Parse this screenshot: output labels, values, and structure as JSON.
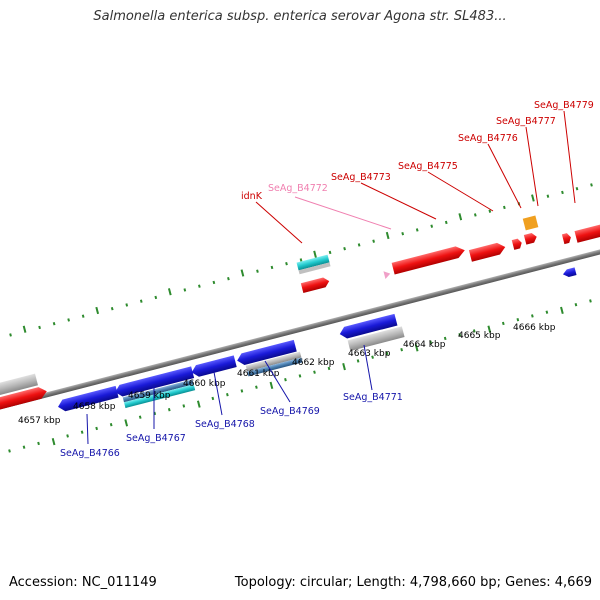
{
  "title": "Salmonella enterica subsp. enterica serovar Agona str. SL483...",
  "footer": {
    "accession": "Accession: NC_011149",
    "summary": "Topology: circular; Length: 4,798,660 bp; Genes: 4,669"
  },
  "colors": {
    "forward_gene": "#ee1111",
    "reverse_gene": "#1a1ad8",
    "gray_feature": "#b8b8b8",
    "cyan_feature": "#20c8cc",
    "steel_feature": "#4a7fb0",
    "pink_feature": "#f0a0c8",
    "orange_feature": "#f0a020",
    "backbone": "#888888",
    "tick": "#2e8b2e",
    "label_forward": "#cc0000",
    "label_pseudo": "#f080b0",
    "label_reverse": "#1515aa"
  },
  "scale_labels": [
    "4657 kbp",
    "4658 kbp",
    "4659 kbp",
    "4660 kbp",
    "4661 kbp",
    "4662 kbp",
    "4663 kbp",
    "4664 kbp",
    "4665 kbp",
    "4666 kbp"
  ],
  "top_labels": [
    {
      "text": "idnK",
      "kind": "forward"
    },
    {
      "text": "SeAg_B4772",
      "kind": "pseudo"
    },
    {
      "text": "SeAg_B4773",
      "kind": "forward"
    },
    {
      "text": "SeAg_B4775",
      "kind": "forward"
    },
    {
      "text": "SeAg_B4776",
      "kind": "forward"
    },
    {
      "text": "SeAg_B4777",
      "kind": "forward"
    },
    {
      "text": "SeAg_B4779",
      "kind": "forward"
    }
  ],
  "bottom_labels": [
    {
      "text": "SeAg_B4766"
    },
    {
      "text": "SeAg_B4767"
    },
    {
      "text": "SeAg_B4768"
    },
    {
      "text": "SeAg_B4769"
    },
    {
      "text": "SeAg_B4771"
    }
  ]
}
